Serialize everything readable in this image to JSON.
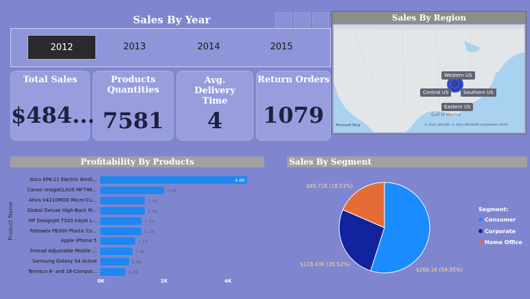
{
  "sales_by_year": {
    "title": "Sales By Year",
    "years": [
      "2012",
      "2013",
      "2014",
      "2015"
    ],
    "selected": "2012"
  },
  "kpis": [
    {
      "label": "Total Sales",
      "value": "$484..."
    },
    {
      "label": "Products Quantities",
      "value": "7581"
    },
    {
      "label": "Avg. Delivery Time",
      "value": "4"
    },
    {
      "label": "Return Orders",
      "value": "1079"
    }
  ],
  "region": {
    "title": "Sales By Region",
    "labels": [
      "Western US",
      "Central US",
      "Southern US",
      "Eastern US"
    ],
    "copyright": "© 2022 TomTom, © 2022 Microsoft Corporation Terms",
    "brand": "Microsoft Bing",
    "place": "Gulf of Mexico"
  },
  "profitability": {
    "title": "Profitability By Products",
    "y_axis_title": "Product Name",
    "axis_ticks": [
      "0K",
      "2K",
      "4K"
    ]
  },
  "segment": {
    "title": "Sales By Segment",
    "legend_title": "Segment:",
    "items": [
      {
        "name": "Consumer",
        "label": "$266.1K (54.95%)"
      },
      {
        "name": "Corporate",
        "label": "$128.43K (26.52%)"
      },
      {
        "name": "Home Office",
        "label": "$89.72K (18.53%)"
      }
    ]
  },
  "chart_data": [
    {
      "type": "bar",
      "title": "Profitability By Products",
      "ylabel": "Product Name",
      "categories": [
        "Ibico EPK-21 Electric Bindi...",
        "Canon imageCLASS MF746...",
        "Ativa V4110MDD Micro-Cu...",
        "Global Deluxe High-Back M...",
        "HP Designjet T520 Inkjet L...",
        "Fellowes PB300 Plastic Co...",
        "Apple iPhone 5",
        "Smead Adjustable Mobile ...",
        "Samsung Galaxy S4 Active",
        "Tennsco 6- and 18-Compar..."
      ],
      "values": [
        4.6,
        2.0,
        1.4,
        1.4,
        1.3,
        1.3,
        1.1,
        1.0,
        0.9,
        0.8
      ],
      "value_labels": [
        "4.6K",
        "2.0K",
        "1.4K",
        "1.4K",
        "1.3K",
        "1.3K",
        "1.1K",
        "1.0K",
        "0.9K",
        "0.8K"
      ],
      "xlim": [
        0,
        4
      ]
    },
    {
      "type": "pie",
      "title": "Sales By Segment",
      "categories": [
        "Consumer",
        "Corporate",
        "Home Office"
      ],
      "values": [
        266.1,
        128.43,
        89.72
      ],
      "colors": [
        "#1a8cff",
        "#12239e",
        "#e66c37"
      ]
    }
  ]
}
